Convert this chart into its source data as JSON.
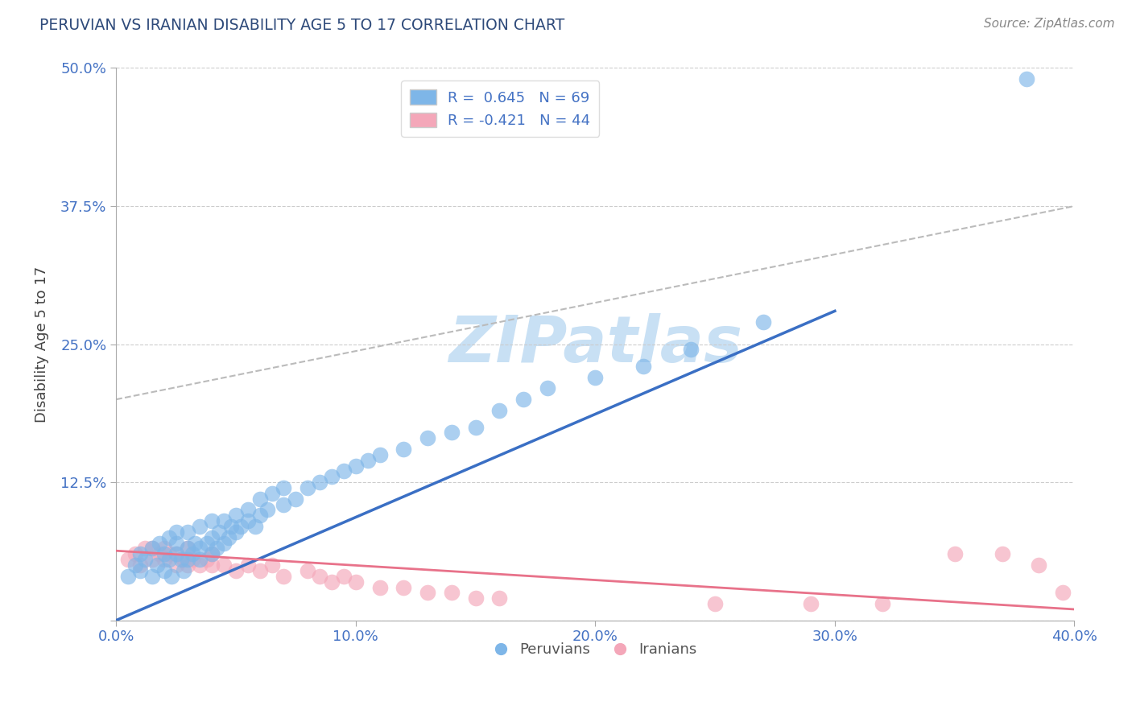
{
  "title": "PERUVIAN VS IRANIAN DISABILITY AGE 5 TO 17 CORRELATION CHART",
  "source": "Source: ZipAtlas.com",
  "ylabel": "Disability Age 5 to 17",
  "xlim": [
    0.0,
    0.4
  ],
  "ylim": [
    0.0,
    0.5
  ],
  "yticks": [
    0.0,
    0.125,
    0.25,
    0.375,
    0.5
  ],
  "ytick_labels": [
    "",
    "12.5%",
    "25.0%",
    "37.5%",
    "50.0%"
  ],
  "xtick_vals": [
    0.0,
    0.1,
    0.2,
    0.3,
    0.4
  ],
  "xtick_labels": [
    "0.0%",
    "10.0%",
    "20.0%",
    "30.0%",
    "40.0%"
  ],
  "blue_R": 0.645,
  "blue_N": 69,
  "pink_R": -0.421,
  "pink_N": 44,
  "blue_color": "#7EB6E8",
  "pink_color": "#F4A7B9",
  "blue_line_color": "#3A6FC4",
  "pink_line_color": "#E8728A",
  "title_color": "#2E4A7A",
  "axis_label_color": "#4472C4",
  "source_color": "#888888",
  "watermark_color": "#C8E0F4",
  "blue_scatter_x": [
    0.005,
    0.008,
    0.01,
    0.01,
    0.012,
    0.015,
    0.015,
    0.017,
    0.018,
    0.02,
    0.02,
    0.022,
    0.022,
    0.023,
    0.025,
    0.025,
    0.025,
    0.027,
    0.028,
    0.03,
    0.03,
    0.03,
    0.032,
    0.033,
    0.035,
    0.035,
    0.035,
    0.038,
    0.04,
    0.04,
    0.04,
    0.042,
    0.043,
    0.045,
    0.045,
    0.047,
    0.048,
    0.05,
    0.05,
    0.052,
    0.055,
    0.055,
    0.058,
    0.06,
    0.06,
    0.063,
    0.065,
    0.07,
    0.07,
    0.075,
    0.08,
    0.085,
    0.09,
    0.095,
    0.1,
    0.105,
    0.11,
    0.12,
    0.13,
    0.14,
    0.15,
    0.16,
    0.17,
    0.18,
    0.2,
    0.22,
    0.24,
    0.27,
    0.38
  ],
  "blue_scatter_y": [
    0.04,
    0.05,
    0.045,
    0.06,
    0.055,
    0.04,
    0.065,
    0.05,
    0.07,
    0.045,
    0.06,
    0.055,
    0.075,
    0.04,
    0.06,
    0.07,
    0.08,
    0.055,
    0.045,
    0.055,
    0.065,
    0.08,
    0.06,
    0.07,
    0.055,
    0.065,
    0.085,
    0.07,
    0.06,
    0.075,
    0.09,
    0.065,
    0.08,
    0.07,
    0.09,
    0.075,
    0.085,
    0.08,
    0.095,
    0.085,
    0.09,
    0.1,
    0.085,
    0.095,
    0.11,
    0.1,
    0.115,
    0.105,
    0.12,
    0.11,
    0.12,
    0.125,
    0.13,
    0.135,
    0.14,
    0.145,
    0.15,
    0.155,
    0.165,
    0.17,
    0.175,
    0.19,
    0.2,
    0.21,
    0.22,
    0.23,
    0.245,
    0.27,
    0.49
  ],
  "pink_scatter_x": [
    0.005,
    0.008,
    0.01,
    0.012,
    0.015,
    0.015,
    0.018,
    0.02,
    0.02,
    0.022,
    0.025,
    0.025,
    0.028,
    0.03,
    0.03,
    0.032,
    0.035,
    0.038,
    0.04,
    0.04,
    0.045,
    0.05,
    0.055,
    0.06,
    0.065,
    0.07,
    0.08,
    0.085,
    0.09,
    0.095,
    0.1,
    0.11,
    0.12,
    0.13,
    0.14,
    0.15,
    0.16,
    0.25,
    0.29,
    0.32,
    0.35,
    0.37,
    0.385,
    0.395
  ],
  "pink_scatter_y": [
    0.055,
    0.06,
    0.05,
    0.065,
    0.055,
    0.065,
    0.06,
    0.055,
    0.065,
    0.06,
    0.05,
    0.06,
    0.055,
    0.065,
    0.05,
    0.055,
    0.05,
    0.055,
    0.06,
    0.05,
    0.05,
    0.045,
    0.05,
    0.045,
    0.05,
    0.04,
    0.045,
    0.04,
    0.035,
    0.04,
    0.035,
    0.03,
    0.03,
    0.025,
    0.025,
    0.02,
    0.02,
    0.015,
    0.015,
    0.015,
    0.06,
    0.06,
    0.05,
    0.025
  ],
  "blue_line_x": [
    0.0,
    0.3
  ],
  "blue_line_y": [
    0.0,
    0.28
  ],
  "pink_line_x": [
    0.0,
    0.4
  ],
  "pink_line_y": [
    0.063,
    0.01
  ],
  "dash_line_x": [
    0.0,
    0.4
  ],
  "dash_line_y": [
    0.2,
    0.375
  ]
}
